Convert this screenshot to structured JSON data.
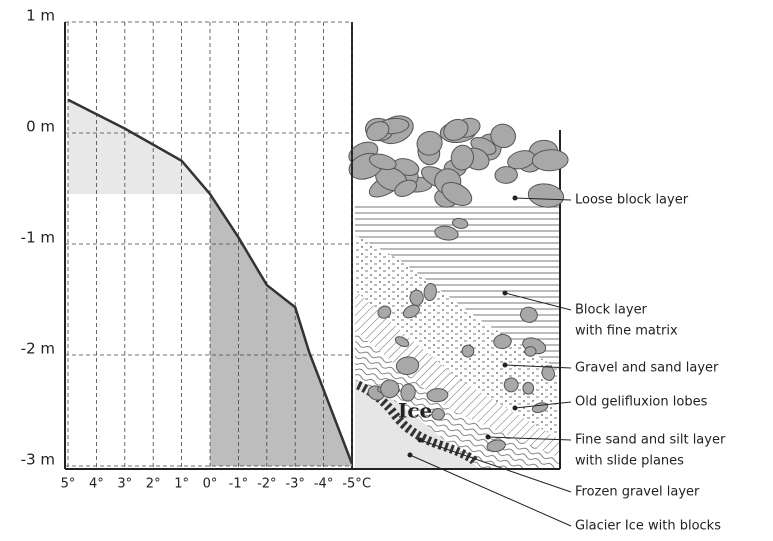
{
  "chart_data": {
    "type": "line",
    "x_label": "C",
    "x": [
      5,
      3,
      1,
      0,
      -1,
      -2,
      -3,
      -3.5,
      -5
    ],
    "values": [
      0.3,
      0.04,
      -0.25,
      -0.55,
      -0.94,
      -1.37,
      -1.57,
      -1.98,
      -2.98
    ],
    "color": "#333333",
    "xlim": [
      5,
      -5
    ],
    "xticks": [
      {
        "value": 5,
        "label": "5°"
      },
      {
        "value": 4,
        "label": "4°"
      },
      {
        "value": 3,
        "label": "3°"
      },
      {
        "value": 2,
        "label": "2°"
      },
      {
        "value": 1,
        "label": "1°"
      },
      {
        "value": 0,
        "label": "0°"
      },
      {
        "value": -1,
        "label": "-1°"
      },
      {
        "value": -2,
        "label": "-2°"
      },
      {
        "value": -3,
        "label": "-3°"
      },
      {
        "value": -4,
        "label": "-4°"
      },
      {
        "value": -5,
        "label": "-5°"
      }
    ],
    "ylim": [
      -3,
      1
    ],
    "yticks": [
      {
        "value": 1,
        "label": "1 m"
      },
      {
        "value": 0,
        "label": "0 m"
      },
      {
        "value": -1,
        "label": "-1 m"
      },
      {
        "value": -2,
        "label": "-2 m"
      },
      {
        "value": -3,
        "label": "-3 m"
      }
    ],
    "grid": true
  },
  "diagram": {
    "ice_label": "Ice",
    "labels": [
      {
        "lines": [
          "Loose block layer"
        ]
      },
      {
        "lines": [
          "Block layer",
          "with fine matrix"
        ]
      },
      {
        "lines": [
          "Gravel and sand layer"
        ]
      },
      {
        "lines": [
          "Old gelifluxion lobes"
        ]
      },
      {
        "lines": [
          "Fine sand and silt layer",
          "with slide planes"
        ]
      },
      {
        "lines": [
          "Frozen gravel layer"
        ]
      },
      {
        "lines": [
          "Glacier Ice with blocks"
        ]
      }
    ]
  }
}
